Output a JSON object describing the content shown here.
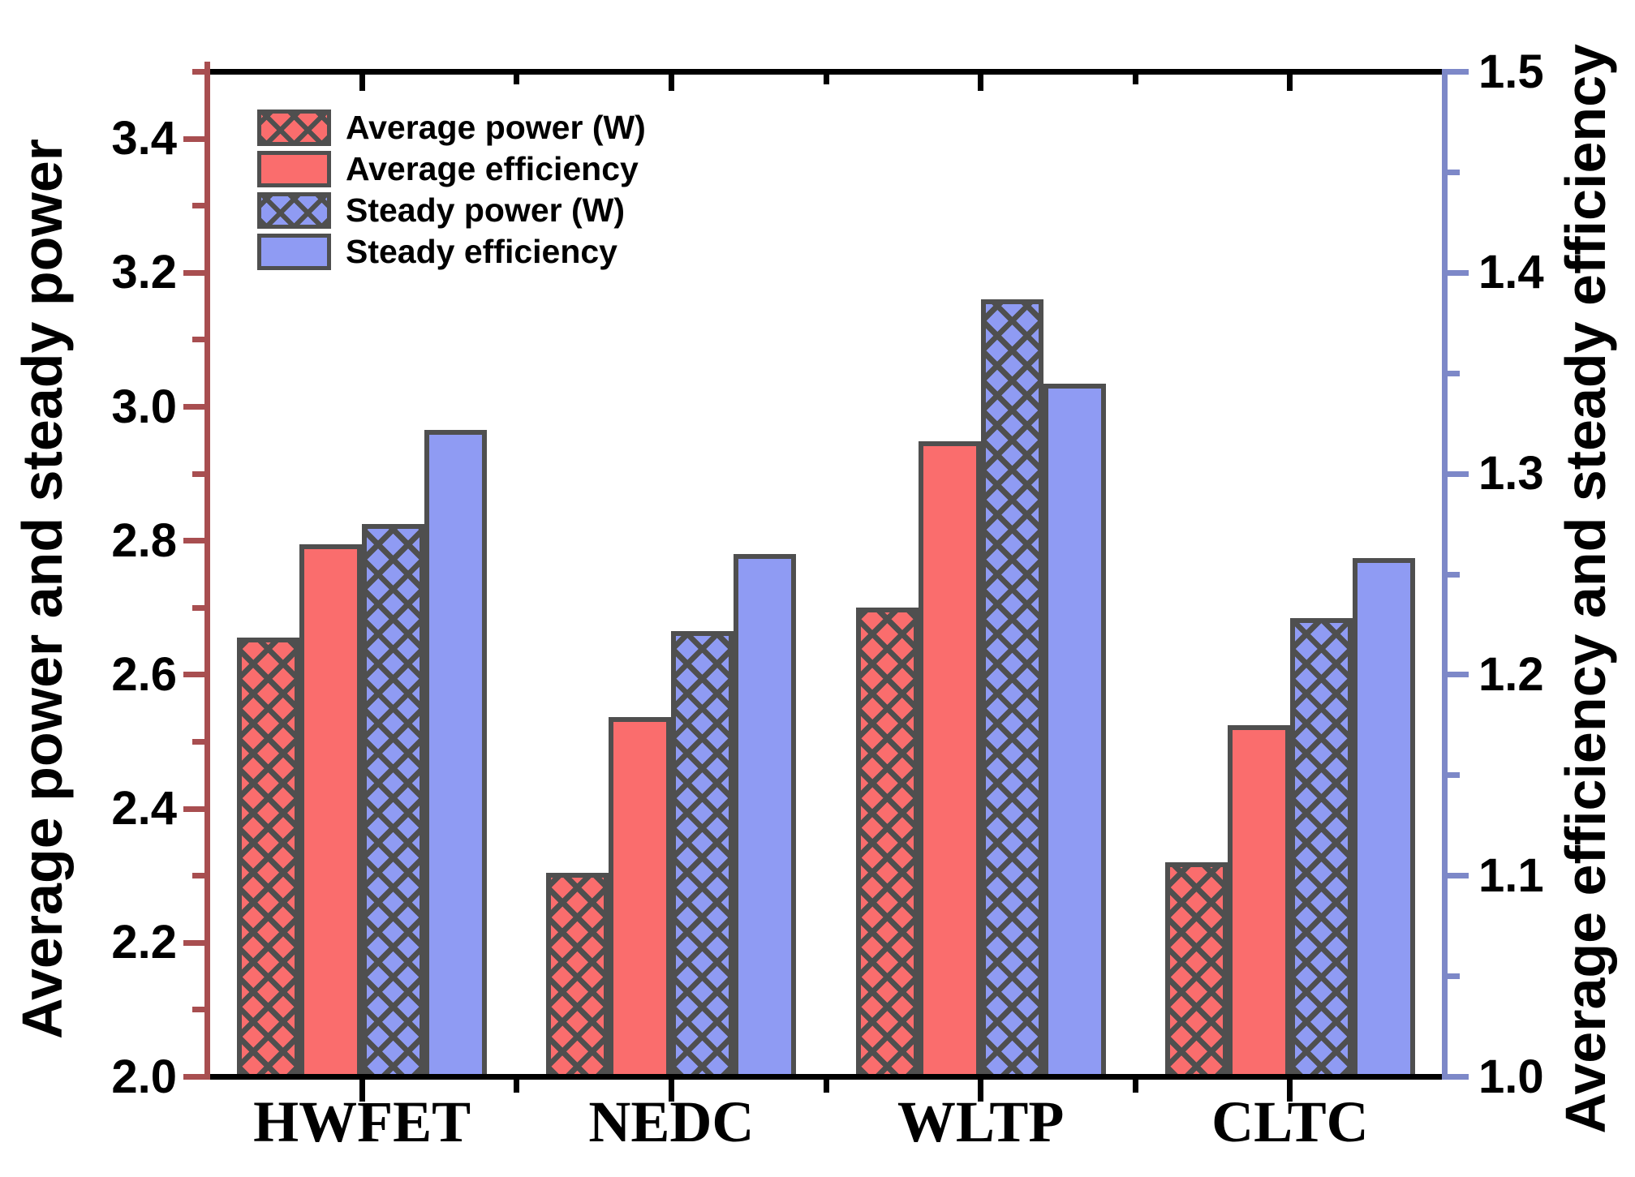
{
  "figure": {
    "background": "#ffffff"
  },
  "chart_data": {
    "type": "bar",
    "title": "",
    "categories": [
      "HWFET",
      "NEDC",
      "WLTP",
      "CLTC"
    ],
    "series": [
      {
        "name": "Average power (W)",
        "axis": "left",
        "pattern": "crosshatch",
        "fill": "#fa6d6d",
        "values": [
          2.655,
          2.305,
          2.7,
          2.32
        ]
      },
      {
        "name": "Average efficiency",
        "axis": "right",
        "pattern": "solid",
        "fill": "#fa6d6d",
        "values": [
          1.265,
          1.179,
          1.316,
          1.175
        ]
      },
      {
        "name": "Steady power (W)",
        "axis": "left",
        "pattern": "crosshatch",
        "fill": "#8f9bf3",
        "values": [
          2.825,
          2.665,
          3.16,
          2.685
        ]
      },
      {
        "name": "Steady efficiency",
        "axis": "right",
        "pattern": "solid",
        "fill": "#8f9bf3",
        "values": [
          1.322,
          1.26,
          1.345,
          1.258
        ]
      }
    ],
    "left_axis": {
      "title": "Average power and steady power",
      "min": 2.0,
      "max": 3.5,
      "major_step": 0.2,
      "minor_step": 0.1,
      "major_tick_labels": [
        "2.0",
        "2.2",
        "2.4",
        "2.6",
        "2.8",
        "3.0",
        "3.2",
        "3.4"
      ],
      "color": "#a84e50"
    },
    "right_axis": {
      "title": "Average efficiency and steady efficiency",
      "min": 1.0,
      "max": 1.5,
      "major_step": 0.1,
      "minor_step": 0.05,
      "major_tick_labels": [
        "1.0",
        "1.1",
        "1.2",
        "1.3",
        "1.4",
        "1.5"
      ],
      "color": "#7d88c8"
    },
    "frame_color": "#000000",
    "hatch_color": "#4f4f4f",
    "grid": false,
    "legend_position": "top-left-inside"
  }
}
